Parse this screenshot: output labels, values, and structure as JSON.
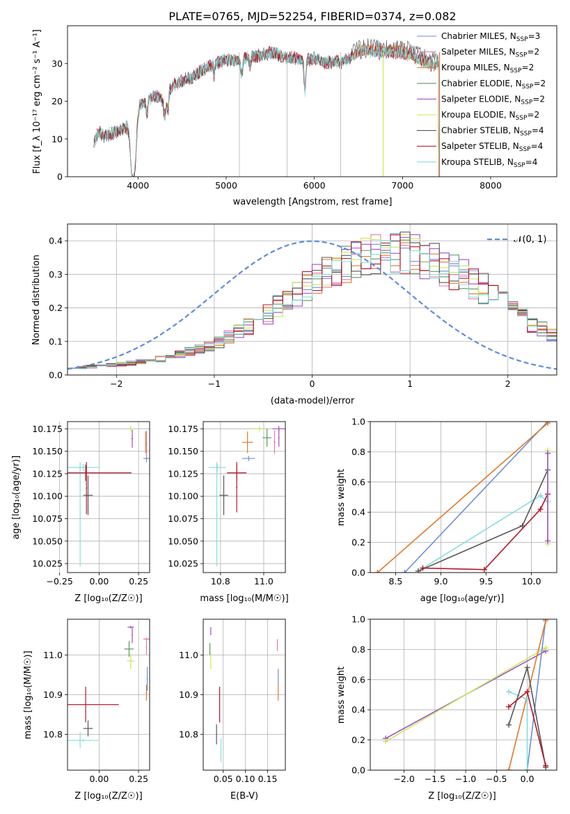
{
  "title": "PLATE=0765, MJD=52254, FIBERID=0374, z=0.082",
  "colors": {
    "Chabrier MILES": "#6b8fd6",
    "Salpeter MILES": "#e37aa6",
    "Kroupa MILES": "#e0782a",
    "Chabrier ELODIE": "#5a9a5a",
    "Salpeter ELODIE": "#a04fc4",
    "Kroupa ELODIE": "#c8e85a",
    "Chabrier STELIB": "#555555",
    "Salpeter STELIB": "#b2182b",
    "Kroupa STELIB": "#85dde0",
    "normal": "#5f8dd8"
  },
  "chart_data": [
    {
      "type": "line",
      "xlabel": "wavelength [Angstrom, rest frame]",
      "ylabel": "Flux [f_λ 10⁻¹⁷ erg cm⁻² s⁻¹ A⁻¹]",
      "xlim": [
        3200,
        8750
      ],
      "ylim": [
        0,
        40
      ],
      "xticks": [
        4000,
        5000,
        6000,
        7000,
        8000
      ],
      "yticks": [
        0,
        10,
        20,
        30
      ],
      "grid": false,
      "legend_position": "right",
      "legend": [
        "Chabrier MILES, N_SSP=3",
        "Salpeter MILES, N_SSP=2",
        "Kroupa MILES, N_SSP=2",
        "Chabrier ELODIE, N_SSP=2",
        "Salpeter ELODIE, N_SSP=2",
        "Kroupa ELODIE, N_SSP=2",
        "Chabrier STELIB, N_SSP=4",
        "Salpeter STELIB, N_SSP=4",
        "Kroupa STELIB, N_SSP=4"
      ],
      "continuum": {
        "x": [
          3500,
          3550,
          3600,
          3700,
          3800,
          3850,
          3900,
          3950,
          4000,
          4100,
          4200,
          4300,
          4400,
          4500,
          4600,
          4700,
          4800,
          4900,
          5000,
          5100,
          5200,
          5300,
          5400,
          5500,
          5600,
          5700,
          5800,
          5900,
          6000,
          6100,
          6200,
          6300,
          6400,
          6500,
          6600,
          6700,
          6800,
          6900,
          7000,
          7100,
          7200,
          7300
        ],
        "y": [
          9,
          12,
          11,
          11.5,
          12.5,
          13,
          14,
          16,
          19,
          20.5,
          21.5,
          21,
          24.5,
          25.5,
          26.5,
          28,
          29.5,
          30.5,
          31,
          31,
          31.5,
          32,
          32.5,
          33,
          32.5,
          31.5,
          31.5,
          31,
          31.5,
          30.5,
          30.5,
          30.5,
          31.5,
          33,
          33.5,
          33,
          33,
          33,
          33,
          32.5,
          31,
          30
        ]
      },
      "spectrum_end": 7410,
      "vertical_lines": [
        5150,
        5690,
        6300,
        6780,
        7420
      ]
    },
    {
      "type": "histogram",
      "xlabel": "(data-model)/error",
      "ylabel": "Normed distribution",
      "xlim": [
        -2.5,
        2.5
      ],
      "ylim": [
        0,
        0.45
      ],
      "xticks": [
        -2,
        -1,
        0,
        1,
        2
      ],
      "yticks": [
        0.0,
        0.1,
        0.2,
        0.3,
        0.4
      ],
      "grid": true,
      "legend_position": "top-right",
      "bin_width": 0.1,
      "normal_curve_label": "𝒩(0, 1)",
      "envelope": {
        "x": [
          -2.5,
          -2,
          -1.5,
          -1,
          -0.5,
          0,
          0.3,
          0.6,
          0.9,
          1.2,
          1.5,
          1.8,
          2.1,
          2.5
        ],
        "y": [
          0.02,
          0.03,
          0.05,
          0.09,
          0.17,
          0.28,
          0.32,
          0.36,
          0.37,
          0.34,
          0.3,
          0.25,
          0.18,
          0.11
        ]
      }
    },
    {
      "type": "scatter",
      "xlabel": "Z [log₁₀(Z/Z☉)]",
      "ylabel": "age  [log₁₀(age/yr)]",
      "xlim": [
        -0.2,
        0.32
      ],
      "ylim": [
        10.015,
        10.183
      ],
      "xticks": [
        -0.25,
        0,
        0.25
      ],
      "yticks": [
        10.025,
        10.05,
        10.075,
        10.1,
        10.125,
        10.15,
        10.175
      ],
      "grid": true,
      "points": [
        {
          "model": "Kroupa STELIB",
          "x": -0.1,
          "xerr": 0.1,
          "y": 10.132,
          "yerr": 0.004
        },
        {
          "model": "Kroupa STELIB",
          "x": -0.12,
          "xerr": 0.004,
          "y": 10.08,
          "yerr": 0.058
        },
        {
          "model": "Salpeter STELIB",
          "x": -0.085,
          "xerr": 0.29,
          "y": 10.126,
          "yerr": 0.009
        },
        {
          "model": "Salpeter STELIB",
          "x": -0.08,
          "xerr": 0.004,
          "y": 10.109,
          "yerr": 0.029
        },
        {
          "model": "Chabrier STELIB",
          "x": -0.07,
          "xerr": 0.03,
          "y": 10.101,
          "yerr": 0.022
        },
        {
          "model": "Kroupa ELODIE",
          "x": 0.2,
          "xerr": 0.02,
          "y": 10.175,
          "yerr": 0.003
        },
        {
          "model": "Salpeter ELODIE",
          "x": 0.21,
          "xerr": 0.005,
          "y": 10.164,
          "yerr": 0.01
        },
        {
          "model": "Chabrier MILES",
          "x": 0.3,
          "xerr": 0.02,
          "y": 10.142,
          "yerr": 0.004
        },
        {
          "model": "Salpeter MILES",
          "x": 0.3,
          "xerr": 0.005,
          "y": 10.158,
          "yerr": 0.015
        },
        {
          "model": "Kroupa MILES",
          "x": 0.295,
          "xerr": 0.003,
          "y": 10.16,
          "yerr": 0.012
        }
      ]
    },
    {
      "type": "scatter",
      "xlabel": "mass [log₁₀(M/M☉)]",
      "ylabel": "",
      "xlim": [
        10.72,
        11.1
      ],
      "ylim": [
        10.015,
        10.183
      ],
      "xticks": [
        10.8,
        11.0
      ],
      "yticks": [
        10.025,
        10.05,
        10.075,
        10.1,
        10.125,
        10.15,
        10.175
      ],
      "grid": true,
      "points": [
        {
          "model": "Kroupa STELIB",
          "x": 10.785,
          "xerr": 0.04,
          "y": 10.132,
          "yerr": 0.004
        },
        {
          "model": "Kroupa STELIB",
          "x": 10.783,
          "xerr": 0.003,
          "y": 10.08,
          "yerr": 0.058
        },
        {
          "model": "Chabrier STELIB",
          "x": 10.815,
          "xerr": 0.02,
          "y": 10.101,
          "yerr": 0.022
        },
        {
          "model": "Salpeter STELIB",
          "x": 10.875,
          "xerr": 0.045,
          "y": 10.126,
          "yerr": 0.009
        },
        {
          "model": "Salpeter STELIB",
          "x": 10.875,
          "xerr": 0.003,
          "y": 10.11,
          "yerr": 0.028
        },
        {
          "model": "Chabrier MILES",
          "x": 10.93,
          "xerr": 0.03,
          "y": 10.142,
          "yerr": 0.003
        },
        {
          "model": "Kroupa MILES",
          "x": 10.925,
          "xerr": 0.025,
          "y": 10.16,
          "yerr": 0.012
        },
        {
          "model": "Chabrier ELODIE",
          "x": 11.015,
          "xerr": 0.02,
          "y": 10.165,
          "yerr": 0.01
        },
        {
          "model": "Kroupa ELODIE",
          "x": 10.98,
          "xerr": 0.03,
          "y": 10.175,
          "yerr": 0.003
        },
        {
          "model": "Salpeter ELODIE",
          "x": 11.07,
          "xerr": 0.03,
          "y": 10.175,
          "yerr": 0.003
        },
        {
          "model": "Salpeter MILES",
          "x": 11.05,
          "xerr": 0.004,
          "y": 10.16,
          "yerr": 0.013
        },
        {
          "model": "Salpeter ELODIE",
          "x": 11.07,
          "xerr": 0.003,
          "y": 10.165,
          "yerr": 0.01
        }
      ]
    },
    {
      "type": "line",
      "xlabel": "age  [log₁₀(age/yr)]",
      "ylabel": "mass weight",
      "xlim": [
        8.22,
        10.28
      ],
      "ylim": [
        0,
        1
      ],
      "xticks": [
        8.5,
        9.0,
        9.5,
        10.0
      ],
      "yticks": [
        0.0,
        0.2,
        0.4,
        0.6,
        0.8,
        1.0
      ],
      "grid": true,
      "series": [
        {
          "model": "Chabrier MILES",
          "x": [
            8.6,
            10.18
          ],
          "y": [
            0.0,
            1.0
          ]
        },
        {
          "model": "Kroupa MILES",
          "x": [
            8.3,
            10.18
          ],
          "y": [
            0.0,
            0.99
          ]
        },
        {
          "model": "Kroupa STELIB",
          "x": [
            8.75,
            10.1,
            10.18
          ],
          "y": [
            0.01,
            0.51,
            0.47
          ]
        },
        {
          "model": "Chabrier STELIB",
          "x": [
            8.75,
            9.9,
            10.18
          ],
          "y": [
            0.01,
            0.31,
            0.68
          ]
        },
        {
          "model": "Salpeter STELIB",
          "x": [
            8.8,
            9.48,
            10.1,
            10.18
          ],
          "y": [
            0.03,
            0.02,
            0.42,
            0.52
          ]
        },
        {
          "model": "Kroupa ELODIE",
          "x": [
            10.18,
            10.18
          ],
          "y": [
            0.19,
            0.81
          ]
        },
        {
          "model": "Salpeter ELODIE",
          "x": [
            10.18,
            10.18
          ],
          "y": [
            0.21,
            0.79
          ]
        }
      ]
    },
    {
      "type": "scatter",
      "xlabel": "Z [log₁₀(Z/Z☉)]",
      "ylabel": "mass [log₁₀(M/M☉)]",
      "xlim": [
        -0.2,
        0.32
      ],
      "ylim": [
        10.71,
        11.09
      ],
      "xticks": [
        0,
        0.25
      ],
      "yticks": [
        10.8,
        10.9,
        11.0
      ],
      "grid": true,
      "points": [
        {
          "model": "Kroupa STELIB",
          "x": -0.1,
          "xerr": 0.1,
          "y": 10.785,
          "yerr": 0.003
        },
        {
          "model": "Kroupa STELIB",
          "x": -0.12,
          "xerr": 0.004,
          "y": 10.785,
          "yerr": 0.02
        },
        {
          "model": "Chabrier STELIB",
          "x": -0.07,
          "xerr": 0.03,
          "y": 10.815,
          "yerr": 0.02
        },
        {
          "model": "Salpeter STELIB",
          "x": -0.085,
          "xerr": 0.21,
          "y": 10.875,
          "yerr": 0.045
        },
        {
          "model": "Salpeter ELODIE",
          "x": 0.2,
          "xerr": 0.02,
          "y": 11.07,
          "yerr": 0.003
        },
        {
          "model": "Salpeter ELODIE",
          "x": 0.21,
          "xerr": 0.004,
          "y": 11.05,
          "yerr": 0.02
        },
        {
          "model": "Chabrier ELODIE",
          "x": 0.19,
          "xerr": 0.03,
          "y": 11.015,
          "yerr": 0.02
        },
        {
          "model": "Kroupa ELODIE",
          "x": 0.2,
          "xerr": 0.025,
          "y": 10.985,
          "yerr": 0.02
        },
        {
          "model": "Chabrier MILES",
          "x": 0.305,
          "xerr": 0.004,
          "y": 10.94,
          "yerr": 0.03
        },
        {
          "model": "Salpeter MILES",
          "x": 0.3,
          "xerr": 0.02,
          "y": 11.04,
          "yerr": 0.003
        },
        {
          "model": "Salpeter MILES",
          "x": 0.3,
          "xerr": 0.004,
          "y": 11.02,
          "yerr": 0.02
        },
        {
          "model": "Kroupa MILES",
          "x": 0.3,
          "xerr": 0.004,
          "y": 10.905,
          "yerr": 0.02
        }
      ]
    },
    {
      "type": "scatter",
      "xlabel": "E(B-V)",
      "ylabel": "",
      "xlim": [
        0.005,
        0.19
      ],
      "ylim": [
        10.71,
        11.09
      ],
      "xticks": [
        0.05,
        0.1,
        0.15
      ],
      "yticks": [
        10.8,
        10.9,
        11.0
      ],
      "grid": true,
      "points": [
        {
          "model": "Salpeter ELODIE",
          "x": 0.022,
          "xerr": 0,
          "y": 11.06,
          "yerr": 0.01
        },
        {
          "model": "Chabrier ELODIE",
          "x": 0.02,
          "xerr": 0,
          "y": 11.015,
          "yerr": 0.015
        },
        {
          "model": "Kroupa ELODIE",
          "x": 0.022,
          "xerr": 0,
          "y": 10.985,
          "yerr": 0.02
        },
        {
          "model": "Salpeter STELIB",
          "x": 0.042,
          "xerr": 0,
          "y": 10.875,
          "yerr": 0.045
        },
        {
          "model": "Chabrier STELIB",
          "x": 0.035,
          "xerr": 0,
          "y": 10.8,
          "yerr": 0.025
        },
        {
          "model": "Kroupa STELIB",
          "x": 0.045,
          "xerr": 0,
          "y": 10.76,
          "yerr": 0.03
        },
        {
          "model": "Salpeter MILES",
          "x": 0.172,
          "xerr": 0,
          "y": 11.025,
          "yerr": 0.015
        },
        {
          "model": "Chabrier MILES",
          "x": 0.174,
          "xerr": 0,
          "y": 10.945,
          "yerr": 0.02
        },
        {
          "model": "Kroupa MILES",
          "x": 0.174,
          "xerr": 0,
          "y": 10.905,
          "yerr": 0.02
        }
      ]
    },
    {
      "type": "line",
      "xlabel": "Z [log₁₀(Z/Z☉)]",
      "ylabel": "mass weight",
      "xlim": [
        -2.55,
        0.48
      ],
      "ylim": [
        0,
        1
      ],
      "xticks": [
        -2.0,
        -1.5,
        -1.0,
        -0.5,
        0.0
      ],
      "yticks": [
        0.0,
        0.2,
        0.4,
        0.6,
        0.8,
        1.0
      ],
      "grid": true,
      "series": [
        {
          "model": "Salpeter ELODIE",
          "x": [
            -2.3,
            0.3
          ],
          "y": [
            0.21,
            0.79
          ]
        },
        {
          "model": "Kroupa ELODIE",
          "x": [
            -2.3,
            0.3
          ],
          "y": [
            0.19,
            0.81
          ]
        },
        {
          "model": "Chabrier MILES",
          "x": [
            0.0,
            0.0,
            0.3
          ],
          "y": [
            0.0,
            0.0,
            1.0
          ]
        },
        {
          "model": "Kroupa MILES",
          "x": [
            -0.3,
            0.3
          ],
          "y": [
            0.0,
            0.99
          ]
        },
        {
          "model": "Kroupa STELIB",
          "x": [
            -0.3,
            0.0,
            0.0
          ],
          "y": [
            0.52,
            0.47,
            0.0
          ]
        },
        {
          "model": "Chabrier STELIB",
          "x": [
            -0.3,
            0.0,
            0.3
          ],
          "y": [
            0.3,
            0.68,
            0.02
          ]
        },
        {
          "model": "Salpeter STELIB",
          "x": [
            -0.3,
            0.0,
            0.3
          ],
          "y": [
            0.42,
            0.52,
            0.03
          ]
        }
      ]
    }
  ]
}
